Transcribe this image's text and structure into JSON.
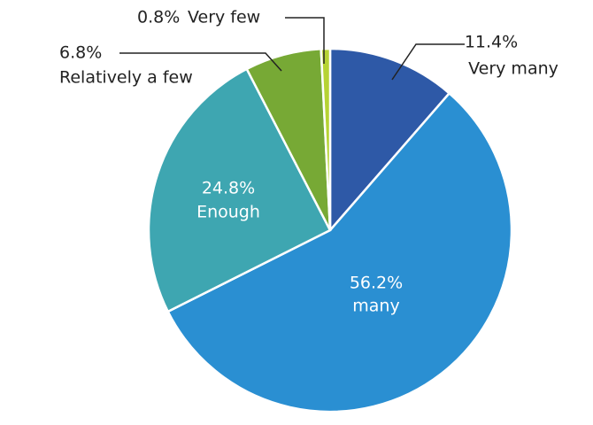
{
  "chart_data": {
    "type": "pie",
    "categories": [
      "Very many",
      "many",
      "Enough",
      "Relatively a few",
      "Very few"
    ],
    "values": [
      11.4,
      56.2,
      24.8,
      6.8,
      0.8
    ],
    "value_labels": [
      "11.4%",
      "56.2%",
      "24.8%",
      "6.8%",
      "0.8%"
    ],
    "colors": [
      "#2e59a7",
      "#2a8fd2",
      "#3ea6b1",
      "#77a935",
      "#b6d334"
    ]
  }
}
